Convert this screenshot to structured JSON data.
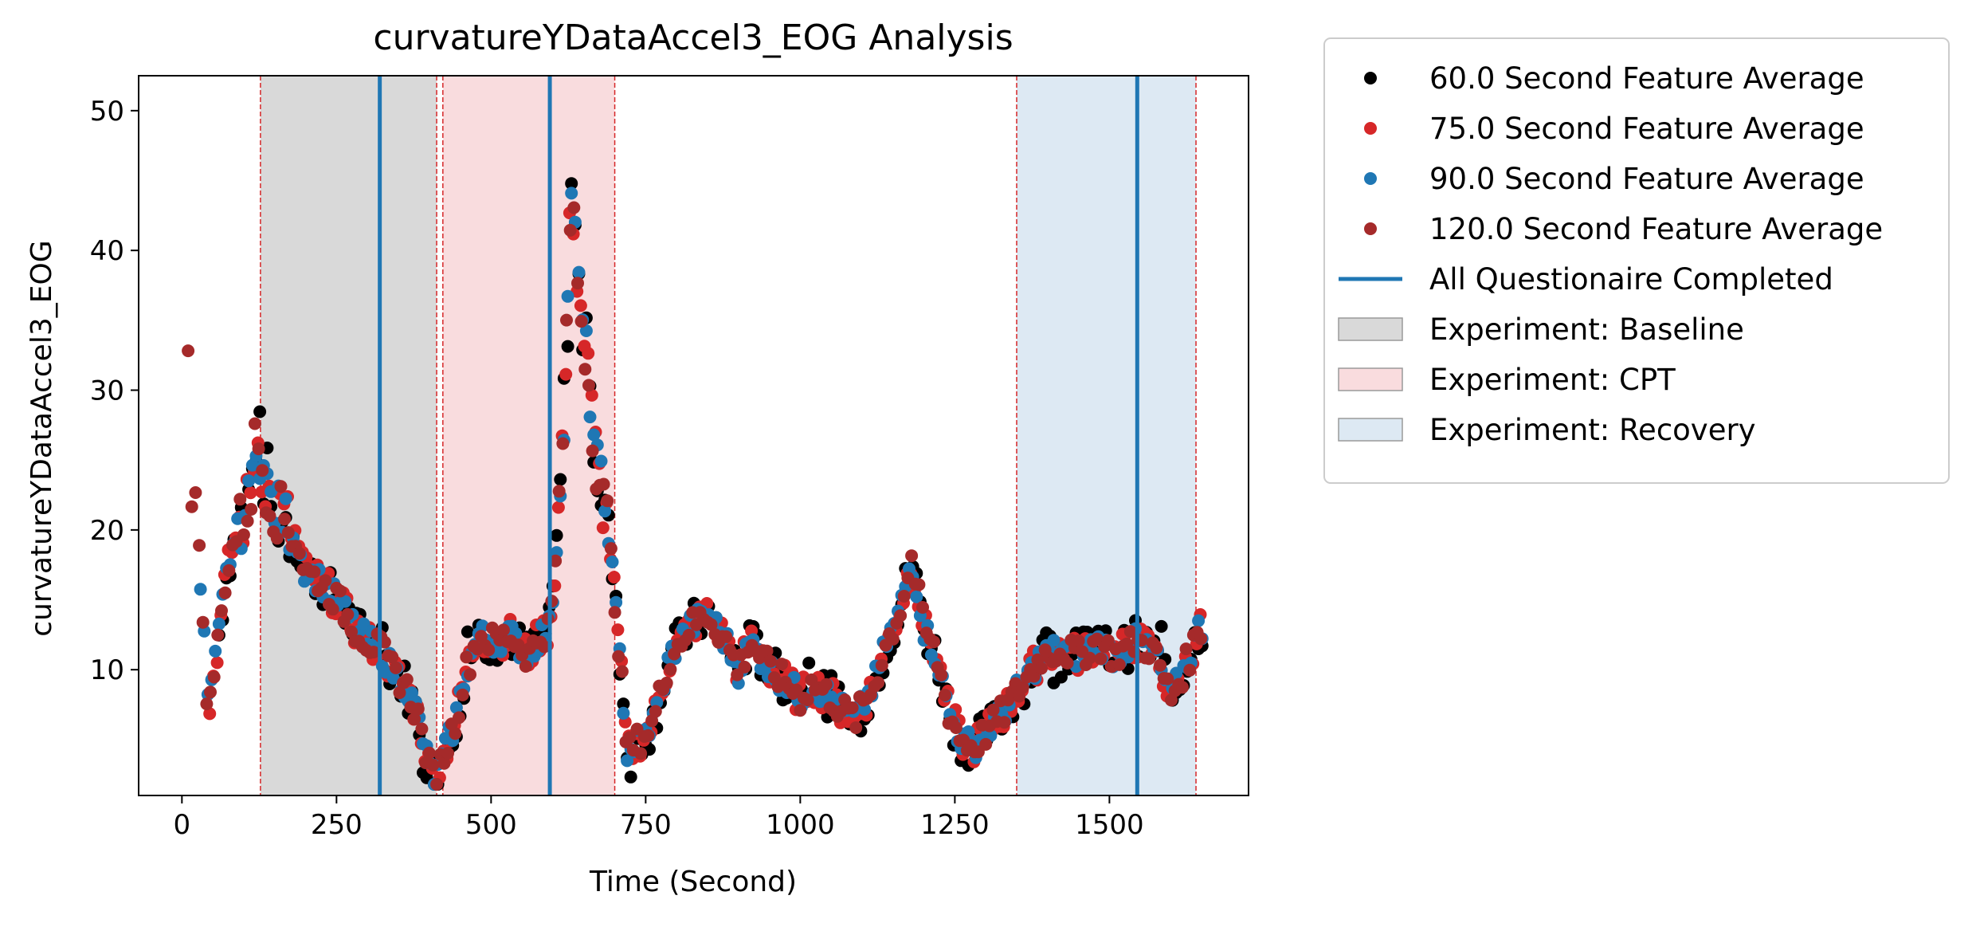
{
  "chart_data": {
    "type": "scatter",
    "title": "curvatureYDataAccel3_EOG Analysis",
    "xlabel": "Time (Second)",
    "ylabel": "curvatureYDataAccel3_EOG",
    "xlim": [
      -70,
      1725
    ],
    "ylim": [
      1,
      52.5
    ],
    "xticks": [
      0,
      250,
      500,
      750,
      1000,
      1250,
      1500
    ],
    "yticks": [
      10,
      20,
      30,
      40,
      50
    ],
    "grid": false,
    "legend_position": "outside-right",
    "series": [
      {
        "name": "60.0 Second Feature Average",
        "color": "#000000",
        "type": "scatter"
      },
      {
        "name": "75.0 Second Feature Average",
        "color": "#d62728",
        "type": "scatter"
      },
      {
        "name": "90.0 Second Feature Average",
        "color": "#1f77b4",
        "type": "scatter"
      },
      {
        "name": "120.0 Second Feature Average",
        "color": "#a52a2a",
        "type": "scatter"
      }
    ],
    "anchors": [
      [
        10,
        33.7
      ],
      [
        15,
        23.8
      ],
      [
        25,
        21.5
      ],
      [
        30,
        15.8
      ],
      [
        35,
        13.0
      ],
      [
        40,
        8.6
      ],
      [
        45,
        7.3
      ],
      [
        55,
        11.0
      ],
      [
        60,
        12.5
      ],
      [
        70,
        16.3
      ],
      [
        80,
        18.5
      ],
      [
        95,
        20.5
      ],
      [
        110,
        22.0
      ],
      [
        120,
        27.0
      ],
      [
        140,
        22.5
      ],
      [
        160,
        21.0
      ],
      [
        180,
        20.0
      ],
      [
        200,
        17.0
      ],
      [
        220,
        16.5
      ],
      [
        250,
        15.0
      ],
      [
        280,
        13.0
      ],
      [
        300,
        12.0
      ],
      [
        320,
        11.5
      ],
      [
        340,
        10.0
      ],
      [
        360,
        9.0
      ],
      [
        380,
        7.0
      ],
      [
        400,
        3.0
      ],
      [
        410,
        2.0
      ],
      [
        420,
        3.5
      ],
      [
        440,
        6.0
      ],
      [
        460,
        10.0
      ],
      [
        480,
        12.5
      ],
      [
        500,
        12.0
      ],
      [
        530,
        12.5
      ],
      [
        560,
        11.0
      ],
      [
        580,
        12.5
      ],
      [
        595,
        13.0
      ],
      [
        605,
        18.0
      ],
      [
        620,
        30.0
      ],
      [
        630,
        45.0
      ],
      [
        640,
        38.0
      ],
      [
        655,
        32.0
      ],
      [
        670,
        25.0
      ],
      [
        690,
        20.0
      ],
      [
        700,
        15.0
      ],
      [
        710,
        10.0
      ],
      [
        720,
        4.0
      ],
      [
        740,
        5.0
      ],
      [
        760,
        6.0
      ],
      [
        790,
        11.0
      ],
      [
        820,
        13.0
      ],
      [
        850,
        14.0
      ],
      [
        880,
        12.0
      ],
      [
        900,
        10.0
      ],
      [
        920,
        12.0
      ],
      [
        950,
        10.0
      ],
      [
        980,
        9.0
      ],
      [
        1000,
        8.0
      ],
      [
        1020,
        9.0
      ],
      [
        1050,
        8.0
      ],
      [
        1070,
        7.0
      ],
      [
        1090,
        6.5
      ],
      [
        1120,
        9.0
      ],
      [
        1140,
        12.0
      ],
      [
        1160,
        14.0
      ],
      [
        1180,
        18.0
      ],
      [
        1200,
        13.0
      ],
      [
        1220,
        11.0
      ],
      [
        1240,
        7.0
      ],
      [
        1260,
        5.0
      ],
      [
        1280,
        4.5
      ],
      [
        1300,
        5.5
      ],
      [
        1330,
        7.0
      ],
      [
        1360,
        9.0
      ],
      [
        1390,
        11.0
      ],
      [
        1420,
        11.5
      ],
      [
        1450,
        11.0
      ],
      [
        1480,
        12.0
      ],
      [
        1510,
        11.0
      ],
      [
        1540,
        12.0
      ],
      [
        1570,
        11.5
      ],
      [
        1600,
        8.0
      ],
      [
        1630,
        11.0
      ],
      [
        1645,
        13.0
      ]
    ],
    "points_note": "",
    "shaded_regions": [
      {
        "label": "Experiment: Baseline",
        "x0": 127,
        "x1": 412,
        "color": "#d9d9d9"
      },
      {
        "label": "Experiment: CPT",
        "x0": 422,
        "x1": 700,
        "color": "#f9dcde"
      },
      {
        "label": "Experiment: Recovery",
        "x0": 1350,
        "x1": 1640,
        "color": "#dde9f3"
      }
    ],
    "boundary_lines_x": [
      127,
      412,
      422,
      700,
      1350,
      1640
    ],
    "vertical_lines": {
      "label": "All Questionaire Completed",
      "color": "#1f77b4",
      "x": [
        320,
        595,
        1545
      ]
    },
    "legend": [
      {
        "label": "60.0 Second Feature Average",
        "kind": "marker",
        "color": "#000000"
      },
      {
        "label": "75.0 Second Feature Average",
        "kind": "marker",
        "color": "#d62728"
      },
      {
        "label": "90.0 Second Feature Average",
        "kind": "marker",
        "color": "#1f77b4"
      },
      {
        "label": "120.0 Second Feature Average",
        "kind": "marker",
        "color": "#a52a2a"
      },
      {
        "label": "All Questionaire Completed",
        "kind": "line",
        "color": "#1f77b4"
      },
      {
        "label": "Experiment: Baseline",
        "kind": "patch",
        "color": "#d9d9d9"
      },
      {
        "label": "Experiment: CPT",
        "kind": "patch",
        "color": "#f9dcde"
      },
      {
        "label": "Experiment: Recovery",
        "kind": "patch",
        "color": "#dde9f3"
      }
    ]
  }
}
